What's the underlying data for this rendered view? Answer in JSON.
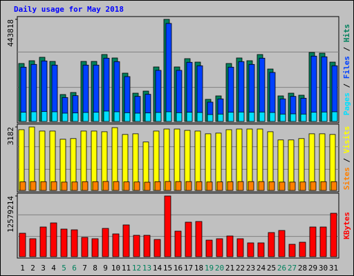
{
  "chart_data": {
    "type": "bar",
    "title": "Daily usage for May 2018",
    "categories": [
      "1",
      "2",
      "3",
      "4",
      "5",
      "6",
      "7",
      "8",
      "9",
      "10",
      "11",
      "12",
      "13",
      "14",
      "15",
      "16",
      "17",
      "18",
      "19",
      "20",
      "21",
      "22",
      "23",
      "24",
      "25",
      "26",
      "27",
      "28",
      "29",
      "30",
      "31"
    ],
    "category_colors": [
      "#000000",
      "#000000",
      "#000000",
      "#000000",
      "#00805c",
      "#00805c",
      "#000000",
      "#000000",
      "#000000",
      "#000000",
      "#000000",
      "#00805c",
      "#00805c",
      "#000000",
      "#000000",
      "#000000",
      "#000000",
      "#000000",
      "#00805c",
      "#00805c",
      "#000000",
      "#000000",
      "#000000",
      "#000000",
      "#000000",
      "#00805c",
      "#00805c",
      "#000000",
      "#000000",
      "#000000",
      "#000000"
    ],
    "legend_separator": " / ",
    "panels": [
      {
        "ylim": [
          0,
          443818
        ],
        "yticks": [
          443818
        ],
        "series": [
          {
            "name": "Hits",
            "color": "#00805c",
            "values": [
              251900,
              263900,
              278900,
              260900,
              117000,
              125900,
              260900,
              260900,
              290900,
              275900,
              209900,
              122900,
              131900,
              236900,
              443818,
              236900,
              272900,
              257900,
              96000,
              111000,
              251900,
              275900,
              263900,
              290900,
              227900,
              111000,
              122900,
              114000,
              299900,
              296900,
              257900
            ]
          },
          {
            "name": "Files",
            "color": "#0040ff",
            "values": [
              236000,
              248000,
              263000,
              245000,
              104000,
              112000,
              245000,
              245000,
              275000,
              260000,
              195000,
              109000,
              118000,
              222000,
              426000,
              222000,
              257000,
              242000,
              84000,
              98000,
              236000,
              260000,
              248000,
              275000,
              213000,
              98000,
              109000,
              101000,
              284000,
              281000,
              242000
            ]
          },
          {
            "name": "Pages",
            "color": "#00e0ff",
            "values": [
              40000,
              42000,
              43000,
              42000,
              36000,
              37000,
              39000,
              40000,
              45000,
              42000,
              38000,
              36000,
              37000,
              39000,
              42000,
              38000,
              40000,
              39000,
              30000,
              32000,
              40000,
              41000,
              40000,
              41000,
              39000,
              32000,
              33000,
              32000,
              40000,
              41000,
              42000
            ]
          }
        ]
      },
      {
        "ylim": [
          0,
          3182
        ],
        "yticks": [
          3182
        ],
        "series": [
          {
            "name": "Visits",
            "color": "#ffff00",
            "values": [
              3045,
              3182,
              2977,
              2977,
              2566,
              2600,
              2977,
              2977,
              2943,
              3148,
              2806,
              2840,
              2429,
              2977,
              3079,
              3079,
              3011,
              2977,
              2840,
              2874,
              3045,
              3079,
              3079,
              3079,
              2943,
              2532,
              2532,
              2600,
              2840,
              2840,
              2806
            ]
          },
          {
            "name": "Sites",
            "color": "#ff8000",
            "values": [
              430,
              445,
              440,
              440,
              420,
              425,
              440,
              440,
              450,
              445,
              430,
              425,
              415,
              440,
              450,
              445,
              445,
              440,
              425,
              430,
              440,
              445,
              445,
              445,
              435,
              420,
              420,
              425,
              435,
              440,
              440
            ]
          }
        ]
      },
      {
        "ylim": [
          0,
          12579214
        ],
        "yticks": [
          12579214
        ],
        "series": [
          {
            "name": "KBytes",
            "color": "#ff0000",
            "values": [
              4860000,
              3720000,
              6150000,
              7000000,
              5720000,
              5570000,
              4000000,
              3720000,
              5860000,
              4720000,
              6580000,
              4430000,
              4430000,
              3570000,
              12579214,
              5290000,
              7150000,
              7290000,
              3430000,
              3720000,
              4290000,
              3720000,
              2860000,
              2860000,
              5000000,
              5430000,
              2570000,
              3000000,
              6150000,
              6150000,
              9000000
            ]
          }
        ]
      }
    ]
  }
}
